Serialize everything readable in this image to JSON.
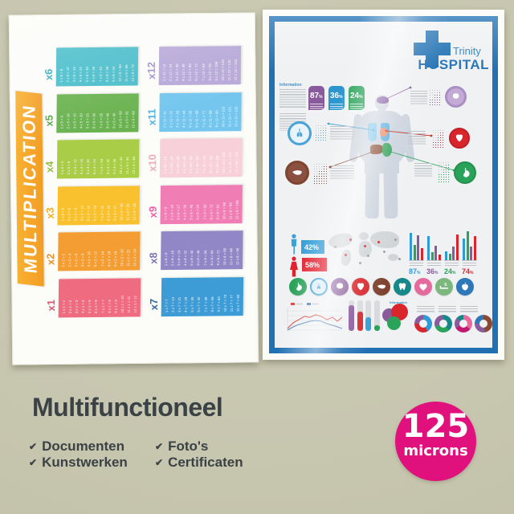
{
  "page": {
    "background": "#c9c8b2"
  },
  "left_poster": {
    "title": "MULTIPLICATION",
    "banner_color": "#f6a62b",
    "tables": [
      {
        "label": "x1",
        "color": "#ee6b80",
        "label_color": "#e25672",
        "equations": [
          "1 x 1 = 1",
          "2 x 1 = 2",
          "3 x 1 = 3",
          "4 x 1 = 4",
          "5 x 1 = 5",
          "6 x 1 = 6",
          "7 x 1 = 7",
          "8 x 1 = 8",
          "9 x 1 = 9",
          "10 x 1 = 10",
          "11 x 1 = 11",
          "12 x 1 = 12"
        ]
      },
      {
        "label": "x2",
        "color": "#f49d33",
        "label_color": "#ec8f2b",
        "equations": [
          "1 x 2 = 2",
          "2 x 2 = 4",
          "3 x 2 = 6",
          "4 x 2 = 8",
          "5 x 2 = 10",
          "6 x 2 = 12",
          "7 x 2 = 14",
          "8 x 2 = 16",
          "9 x 2 = 18",
          "10 x 2 = 20",
          "11 x 2 = 22",
          "12 x 2 = 24"
        ]
      },
      {
        "label": "x3",
        "color": "#f8c12d",
        "label_color": "#f0b128",
        "equations": [
          "1 x 3 = 3",
          "2 x 3 = 6",
          "3 x 3 = 9",
          "4 x 3 = 12",
          "5 x 3 = 15",
          "6 x 3 = 18",
          "7 x 3 = 21",
          "8 x 3 = 24",
          "9 x 3 = 27",
          "10 x 3 = 30",
          "11 x 3 = 33",
          "12 x 3 = 36"
        ]
      },
      {
        "label": "x4",
        "color": "#a9cd46",
        "label_color": "#97c03c",
        "equations": [
          "1 x 4 = 4",
          "2 x 4 = 8",
          "3 x 4 = 12",
          "4 x 4 = 16",
          "5 x 4 = 20",
          "6 x 4 = 24",
          "7 x 4 = 28",
          "8 x 4 = 32",
          "9 x 4 = 36",
          "10 x 4 = 40",
          "11 x 4 = 44",
          "12 x 4 = 48"
        ]
      },
      {
        "label": "x5",
        "color": "#69b24f",
        "label_color": "#57a746",
        "equations": [
          "1 x 5 = 5",
          "2 x 5 = 10",
          "3 x 5 = 15",
          "4 x 5 = 20",
          "5 x 5 = 25",
          "6 x 5 = 30",
          "7 x 5 = 35",
          "8 x 5 = 40",
          "9 x 5 = 45",
          "10 x 5 = 50",
          "11 x 5 = 55",
          "12 x 5 = 60"
        ]
      },
      {
        "label": "x6",
        "color": "#46bcc9",
        "label_color": "#33aebc",
        "equations": [
          "1 x 6 = 6",
          "2 x 6 = 12",
          "3 x 6 = 18",
          "4 x 6 = 24",
          "5 x 6 = 30",
          "6 x 6 = 36",
          "7 x 6 = 42",
          "8 x 6 = 48",
          "9 x 6 = 54",
          "10 x 6 = 60",
          "11 x 6 = 66",
          "12 x 6 = 72"
        ]
      },
      {
        "label": "x7",
        "color": "#3d9cd6",
        "label_color": "#2d6da9",
        "equations": [
          "1 x 7 = 7",
          "2 x 7 = 14",
          "3 x 7 = 21",
          "4 x 7 = 28",
          "5 x 7 = 35",
          "6 x 7 = 42",
          "7 x 7 = 49",
          "8 x 7 = 56",
          "9 x 7 = 63",
          "10 x 7 = 70",
          "11 x 7 = 77",
          "12 x 7 = 84"
        ]
      },
      {
        "label": "x8",
        "color": "#9287c6",
        "label_color": "#7f71ba",
        "equations": [
          "1 x 8 = 8",
          "2 x 8 = 16",
          "3 x 8 = 24",
          "4 x 8 = 32",
          "5 x 8 = 40",
          "6 x 8 = 48",
          "7 x 8 = 56",
          "8 x 8 = 64",
          "9 x 8 = 72",
          "10 x 8 = 80",
          "11 x 8 = 88",
          "12 x 8 = 96"
        ]
      },
      {
        "label": "x9",
        "color": "#f07eb5",
        "label_color": "#ea62a6",
        "equations": [
          "1 x 9 = 9",
          "2 x 9 = 18",
          "3 x 9 = 27",
          "4 x 9 = 36",
          "5 x 9 = 45",
          "6 x 9 = 54",
          "7 x 9 = 63",
          "8 x 9 = 72",
          "9 x 9 = 81",
          "10 x 9 = 90",
          "11 x 9 = 99",
          "12 x 9 = 108"
        ]
      },
      {
        "label": "x10",
        "color": "#f8d0da",
        "label_color": "#f2a8bd",
        "equations": [
          "1 x 10 = 10",
          "2 x 10 = 20",
          "3 x 10 = 30",
          "4 x 10 = 40",
          "5 x 10 = 50",
          "6 x 10 = 60",
          "7 x 10 = 70",
          "8 x 10 = 80",
          "9 x 10 = 90",
          "10 x 10 = 100",
          "11 x 10 = 110",
          "12 x 10 = 120"
        ]
      },
      {
        "label": "x11",
        "color": "#74c6ef",
        "label_color": "#4eb3e7",
        "equations": [
          "1 x 11 = 11",
          "2 x 11 = 22",
          "3 x 11 = 33",
          "4 x 11 = 44",
          "5 x 11 = 55",
          "6 x 11 = 66",
          "7 x 11 = 77",
          "8 x 11 = 88",
          "9 x 11 = 99",
          "10 x 11 = 110",
          "11 x 11 = 121",
          "12 x 11 = 132"
        ]
      },
      {
        "label": "x12",
        "color": "#b7a8d8",
        "label_color": "#a18fcb",
        "equations": [
          "1 x 12 = 12",
          "2 x 12 = 24",
          "3 x 12 = 36",
          "4 x 12 = 48",
          "5 x 12 = 60",
          "6 x 12 = 72",
          "7 x 12 = 84",
          "8 x 12 = 96",
          "9 x 12 = 108",
          "10 x 12 = 120",
          "11 x 12 = 132",
          "12 x 12 = 144"
        ]
      }
    ]
  },
  "right_poster": {
    "frame_color": "#2070b4",
    "logo": {
      "line1": "Trinity",
      "line2": "HOSPITAL"
    },
    "info_label": "Information",
    "percent_sign": "%",
    "stat_badges": [
      {
        "value": "87",
        "color": "#8a5b9c"
      },
      {
        "value": "36",
        "color": "#2e96ce"
      },
      {
        "value": "24",
        "color": "#2ca35b"
      }
    ],
    "callout_icons": [
      "brain",
      "lungs",
      "heart-organ",
      "liver",
      "stomach"
    ],
    "gender": {
      "male_value": "42%",
      "male_color": "#3aa0d8",
      "female_value": "58%",
      "female_color": "#e32230"
    },
    "bar_colors": [
      "#2e9bd6",
      "#2ca35b",
      "#8a5b9c",
      "#d8262c"
    ],
    "region_groups": [
      {
        "label": "87",
        "label_color": "#2e9bd6",
        "bars": [
          90,
          50,
          82,
          40
        ]
      },
      {
        "label": "36",
        "label_color": "#8a5b9c",
        "bars": [
          78,
          26,
          48,
          18
        ]
      },
      {
        "label": "24",
        "label_color": "#2ca35b",
        "bars": [
          28,
          22,
          45,
          85
        ]
      },
      {
        "label": "74",
        "label_color": "#d8262c",
        "bars": [
          72,
          95,
          45,
          78
        ]
      }
    ],
    "organ_row": [
      {
        "icon": "stomach",
        "bg": "#2ba259"
      },
      {
        "icon": "lungs",
        "bg": "#dcedf8",
        "ring": "#3a9fd6",
        "glyph": "#3a9fd6"
      },
      {
        "icon": "brain",
        "bg": "#8a5b9c"
      },
      {
        "icon": "heart-organ",
        "bg": "#d8262c"
      },
      {
        "icon": "liver",
        "bg": "#7e4430"
      },
      {
        "icon": "tooth",
        "bg": "#16888a"
      },
      {
        "icon": "heart",
        "bg": "#e56a9d"
      },
      {
        "icon": "sleep",
        "bg": "#7cb87e"
      },
      {
        "icon": "apple",
        "bg": "#2e77b8"
      }
    ],
    "donuts": [
      {
        "segments": [
          {
            "color": "#2e9bd6",
            "deg": 150
          },
          {
            "color": "#d8262c",
            "deg": 120
          },
          {
            "color": "#8a5b9c",
            "deg": 90
          }
        ]
      },
      {
        "segments": [
          {
            "color": "#16888a",
            "deg": 140
          },
          {
            "color": "#2ca35b",
            "deg": 110
          },
          {
            "color": "#8a5b9c",
            "deg": 110
          }
        ]
      },
      {
        "segments": [
          {
            "color": "#e56a9d",
            "deg": 130
          },
          {
            "color": "#c2186e",
            "deg": 110
          },
          {
            "color": "#8a5b9c",
            "deg": 70
          },
          {
            "color": "#16888a",
            "deg": 50
          }
        ]
      },
      {
        "segments": [
          {
            "color": "#8a4a32",
            "deg": 170
          },
          {
            "color": "#8a5b9c",
            "deg": 100
          },
          {
            "color": "#2e77b8",
            "deg": 90
          }
        ]
      }
    ],
    "gauge_bars": [
      {
        "color": "#8a5b9c",
        "pct": 84
      },
      {
        "color": "#d8262c",
        "pct": 62
      },
      {
        "color": "#3a9fd6",
        "pct": 44
      },
      {
        "color": "#2ca35b",
        "pct": 18
      }
    ]
  },
  "caption": {
    "title": "Multifunctioneel",
    "check": "✔",
    "columns": [
      [
        "Documenten",
        "Kunstwerken"
      ],
      [
        "Foto's",
        "Certificaten"
      ]
    ]
  },
  "badge": {
    "value": "125",
    "unit": "microns",
    "color": "#e0117c"
  }
}
